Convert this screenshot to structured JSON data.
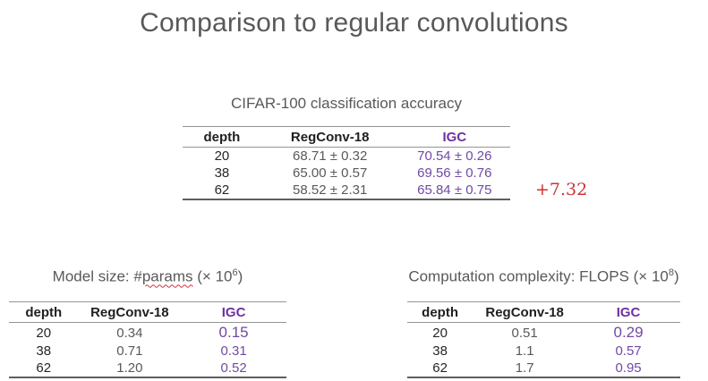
{
  "slide": {
    "title": "Comparison to regular convolutions",
    "gain_annotation": "+7.32",
    "colors": {
      "accent_purple": "#7030A0",
      "annotation_red": "#CC3333",
      "text_gray": "#595959"
    }
  },
  "accuracy_table": {
    "caption": "CIFAR-100 classification accuracy",
    "headers": [
      "depth",
      "RegConv-18",
      "IGC"
    ],
    "rows": [
      [
        "20",
        "68.71 ± 0.32",
        "70.54 ± 0.26"
      ],
      [
        "38",
        "65.00 ± 0.57",
        "69.56 ± 0.76"
      ],
      [
        "62",
        "58.52 ± 2.31",
        "65.84 ± 0.75"
      ]
    ]
  },
  "params_table": {
    "caption": {
      "pre": "Model size: #",
      "misspelled_word": "params",
      "mid": " (× 10",
      "exponent": "6",
      "post": ")"
    },
    "headers": [
      "depth",
      "RegConv-18",
      "IGC"
    ],
    "rows": [
      [
        "20",
        "0.34",
        "0.15"
      ],
      [
        "38",
        "0.71",
        "0.31"
      ],
      [
        "62",
        "1.20",
        "0.52"
      ]
    ]
  },
  "flops_table": {
    "caption": {
      "pre": "Computation complexity: FLOPS (× 10",
      "exponent": "8",
      "post": ")"
    },
    "headers": [
      "depth",
      "RegConv-18",
      "IGC"
    ],
    "rows": [
      [
        "20",
        "0.51",
        "0.29"
      ],
      [
        "38",
        "1.1",
        "0.57"
      ],
      [
        "62",
        "1.7",
        "0.95"
      ]
    ]
  }
}
